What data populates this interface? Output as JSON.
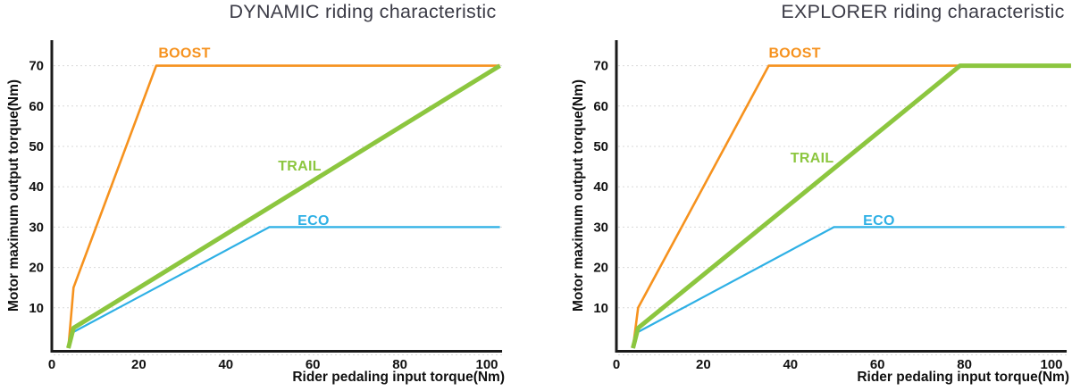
{
  "colors": {
    "boost": "#F6921E",
    "trail": "#8CC63F",
    "eco": "#2EB0E5",
    "title": "#3B3B46",
    "axis": "#1A1A1A",
    "grid": "#D9D9D9"
  },
  "chart_data": [
    {
      "type": "line",
      "title": "DYNAMIC riding characteristic",
      "xlabel": "Rider pedaling input torque(Nm)",
      "ylabel": "Motor maximum output torque(Nm)",
      "xlim": [
        0,
        103.5
      ],
      "ylim": [
        0,
        77
      ],
      "x_ticks": [
        0,
        20,
        40,
        60,
        80,
        100
      ],
      "y_ticks": [
        10,
        20,
        30,
        40,
        50,
        60,
        70
      ],
      "grid": "horizontal-dashed",
      "legend_position": "inline-labels",
      "series": [
        {
          "name": "ECO",
          "color": "#2EB0E5",
          "width": 2.2,
          "points": [
            [
              3.8,
              0
            ],
            [
              5,
              4
            ],
            [
              50,
              30
            ],
            [
              103,
              30
            ]
          ],
          "label_pos": [
            56.5,
            30.5
          ]
        },
        {
          "name": "BOOST",
          "color": "#F6921E",
          "width": 2.6,
          "points": [
            [
              3.8,
              0
            ],
            [
              5,
              15
            ],
            [
              24,
              70
            ],
            [
              103,
              70
            ]
          ],
          "label_pos": [
            24.5,
            72
          ]
        },
        {
          "name": "TRAIL",
          "color": "#8CC63F",
          "width": 5.0,
          "points": [
            [
              3.8,
              0
            ],
            [
              5,
              5
            ],
            [
              103,
              70
            ]
          ],
          "label_pos": [
            52,
            44
          ]
        }
      ]
    },
    {
      "type": "line",
      "title": "EXPLORER riding characteristic",
      "xlabel": "Rider pedaling input torque(Nm)",
      "ylabel": "Motor maximum output torque(Nm)",
      "xlim": [
        0,
        103.5
      ],
      "ylim": [
        0,
        77
      ],
      "x_ticks": [
        0,
        20,
        40,
        60,
        80,
        100
      ],
      "y_ticks": [
        10,
        20,
        30,
        40,
        50,
        60,
        70
      ],
      "grid": "horizontal-dashed",
      "legend_position": "inline-labels",
      "series": [
        {
          "name": "ECO",
          "color": "#2EB0E5",
          "width": 2.2,
          "points": [
            [
              3.8,
              0
            ],
            [
              5,
              4
            ],
            [
              50,
              30
            ],
            [
              103,
              30
            ]
          ],
          "label_pos": [
            56.7,
            30.5
          ]
        },
        {
          "name": "BOOST",
          "color": "#F6921E",
          "width": 2.6,
          "points": [
            [
              3.8,
              0
            ],
            [
              5,
              10
            ],
            [
              35,
              70
            ],
            [
              104.5,
              70
            ]
          ],
          "label_pos": [
            35,
            72
          ]
        },
        {
          "name": "TRAIL",
          "color": "#8CC63F",
          "width": 5.0,
          "points": [
            [
              3.8,
              0
            ],
            [
              5,
              5
            ],
            [
              79,
              70
            ],
            [
              104.5,
              70
            ]
          ],
          "label_pos": [
            40,
            46
          ]
        }
      ]
    }
  ]
}
